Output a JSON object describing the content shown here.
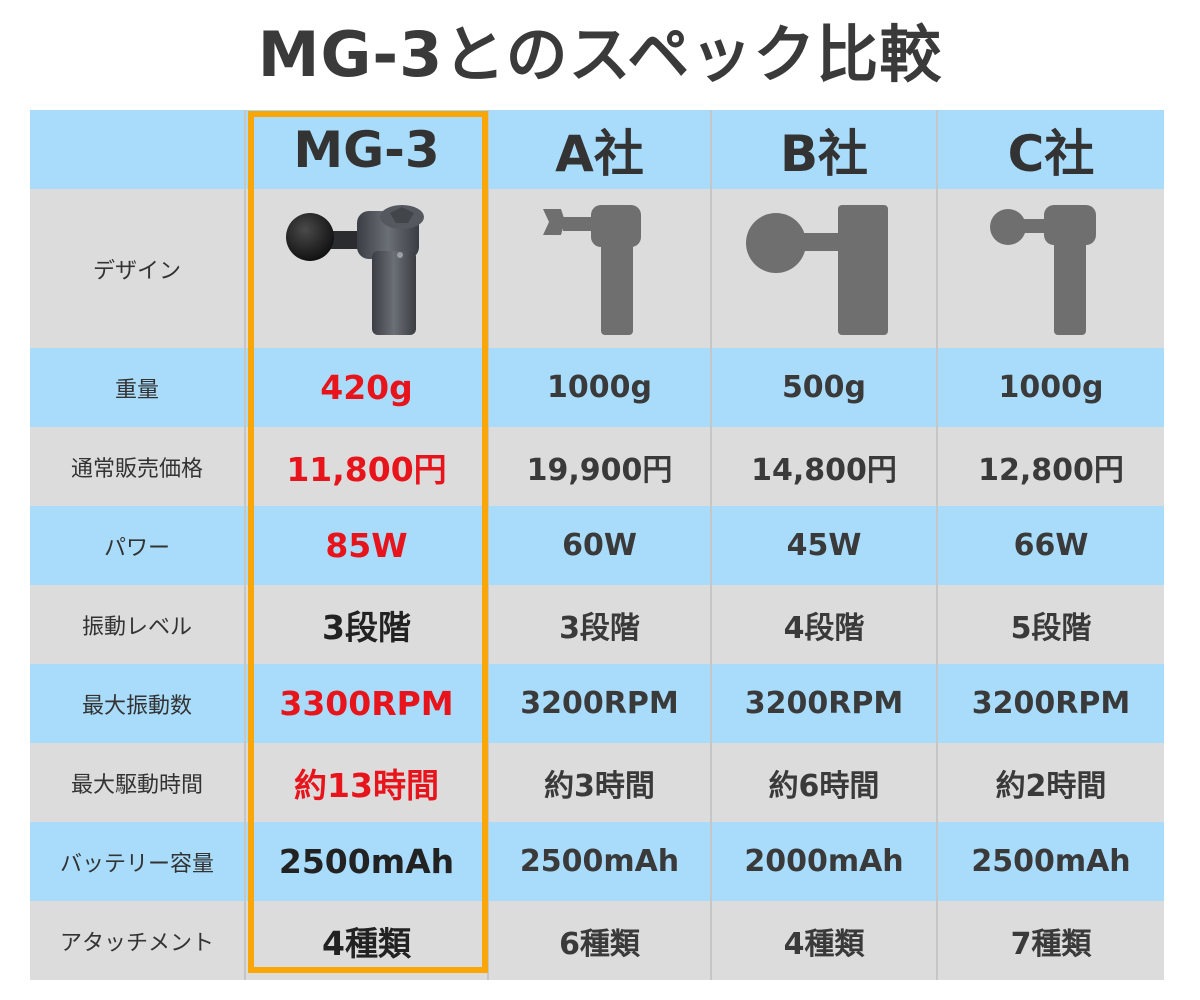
{
  "title": "MG-3とのスペック比較",
  "columns": [
    "MG-3",
    "A社",
    "B社",
    "C社"
  ],
  "row_labels": [
    "デザイン",
    "重量",
    "通常販売価格",
    "パワー",
    "振動レベル",
    "最大振動数",
    "最大駆動時間",
    "バッテリー容量",
    "アタッチメント"
  ],
  "rows": [
    {
      "label": "重量",
      "values": [
        "420g",
        "1000g",
        "500g",
        "1000g"
      ]
    },
    {
      "label": "通常販売価格",
      "values": [
        "11,800円",
        "19,900円",
        "14,800円",
        "12,800円"
      ]
    },
    {
      "label": "パワー",
      "values": [
        "85W",
        "60W",
        "45W",
        "66W"
      ]
    },
    {
      "label": "振動レベル",
      "values": [
        "3段階",
        "3段階",
        "4段階",
        "5段階"
      ]
    },
    {
      "label": "最大振動数",
      "values": [
        "3300RPM",
        "3200RPM",
        "3200RPM",
        "3200RPM"
      ]
    },
    {
      "label": "最大駆動時間",
      "values": [
        "約13時間",
        "約3時間",
        "約6時間",
        "約2時間"
      ]
    },
    {
      "label": "バッテリー容量",
      "values": [
        "2500mAh",
        "2500mAh",
        "2000mAh",
        "2500mAh"
      ]
    },
    {
      "label": "アタッチメント",
      "values": [
        "4種類",
        "6種類",
        "4種類",
        "7種類"
      ]
    }
  ],
  "colors": {
    "highlight_border": "#f9a708",
    "mg_highlight_text": "#e8141b",
    "row_blue": "#a9dcfb",
    "row_gray": "#dcdcdc"
  },
  "icons": [
    "mg3-massage-gun-photo",
    "massage-gun-silhouette-icon"
  ]
}
